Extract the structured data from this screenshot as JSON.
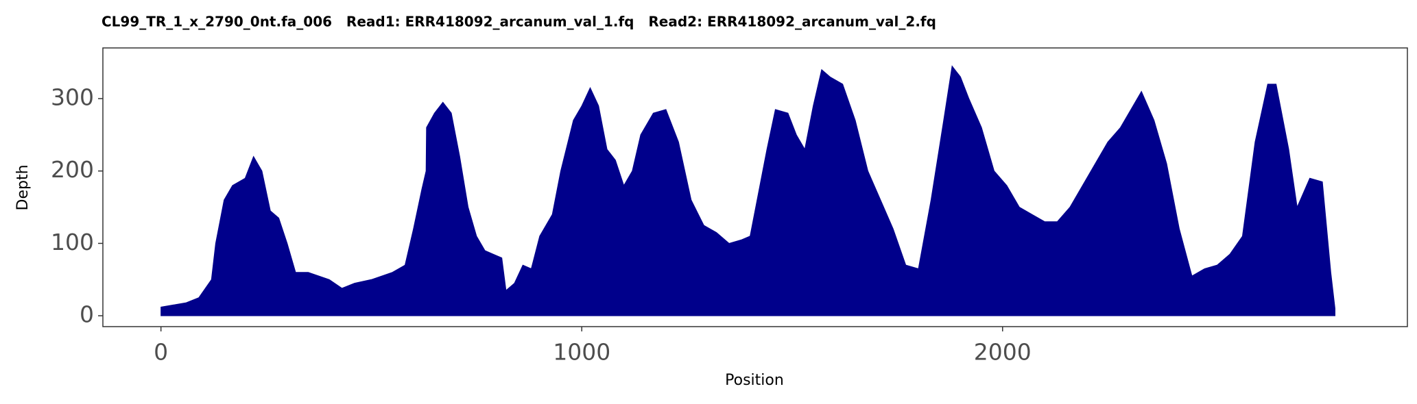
{
  "chart_data": {
    "type": "area",
    "title": "CL99_TR_1_x_2790_0nt.fa_006   Read1: ERR418092_arcanum_val_1.fq   Read2: ERR418092_arcanum_val_2.fq",
    "x_label": "Position",
    "y_label": "Depth",
    "color": "#00008b",
    "xlim": [
      -138,
      2962
    ],
    "ylim": [
      -15,
      370
    ],
    "xticks": [
      0,
      1000,
      2000
    ],
    "yticks": [
      0,
      100,
      200,
      300
    ],
    "x": [
      0,
      30,
      60,
      90,
      120,
      130,
      150,
      170,
      200,
      220,
      240,
      260,
      280,
      300,
      320,
      350,
      400,
      430,
      460,
      500,
      550,
      580,
      600,
      620,
      630,
      631,
      650,
      670,
      690,
      710,
      730,
      750,
      770,
      790,
      810,
      820,
      840,
      860,
      880,
      900,
      930,
      950,
      980,
      1000,
      1020,
      1040,
      1060,
      1080,
      1100,
      1120,
      1140,
      1170,
      1200,
      1230,
      1260,
      1290,
      1320,
      1350,
      1380,
      1400,
      1420,
      1440,
      1460,
      1490,
      1510,
      1530,
      1550,
      1570,
      1590,
      1620,
      1650,
      1680,
      1710,
      1740,
      1770,
      1800,
      1830,
      1860,
      1880,
      1900,
      1920,
      1950,
      1980,
      2010,
      2040,
      2070,
      2100,
      2130,
      2160,
      2190,
      2220,
      2250,
      2280,
      2310,
      2330,
      2360,
      2390,
      2420,
      2450,
      2480,
      2510,
      2540,
      2570,
      2600,
      2630,
      2650,
      2680,
      2700,
      2730,
      2760,
      2780,
      2790
    ],
    "values": [
      12,
      15,
      18,
      25,
      50,
      100,
      160,
      180,
      190,
      220,
      200,
      145,
      135,
      100,
      60,
      60,
      50,
      38,
      45,
      50,
      60,
      70,
      120,
      175,
      200,
      260,
      280,
      295,
      280,
      220,
      150,
      110,
      90,
      85,
      80,
      35,
      45,
      70,
      65,
      110,
      140,
      200,
      270,
      290,
      315,
      290,
      230,
      215,
      180,
      200,
      250,
      280,
      285,
      240,
      160,
      125,
      115,
      100,
      105,
      110,
      170,
      230,
      285,
      280,
      250,
      230,
      290,
      340,
      330,
      320,
      270,
      200,
      160,
      120,
      70,
      65,
      160,
      270,
      345,
      330,
      300,
      260,
      200,
      180,
      150,
      140,
      130,
      130,
      150,
      180,
      210,
      240,
      260,
      290,
      310,
      270,
      210,
      120,
      55,
      65,
      70,
      85,
      110,
      240,
      320,
      320,
      230,
      150,
      190,
      185,
      60,
      10
    ]
  }
}
